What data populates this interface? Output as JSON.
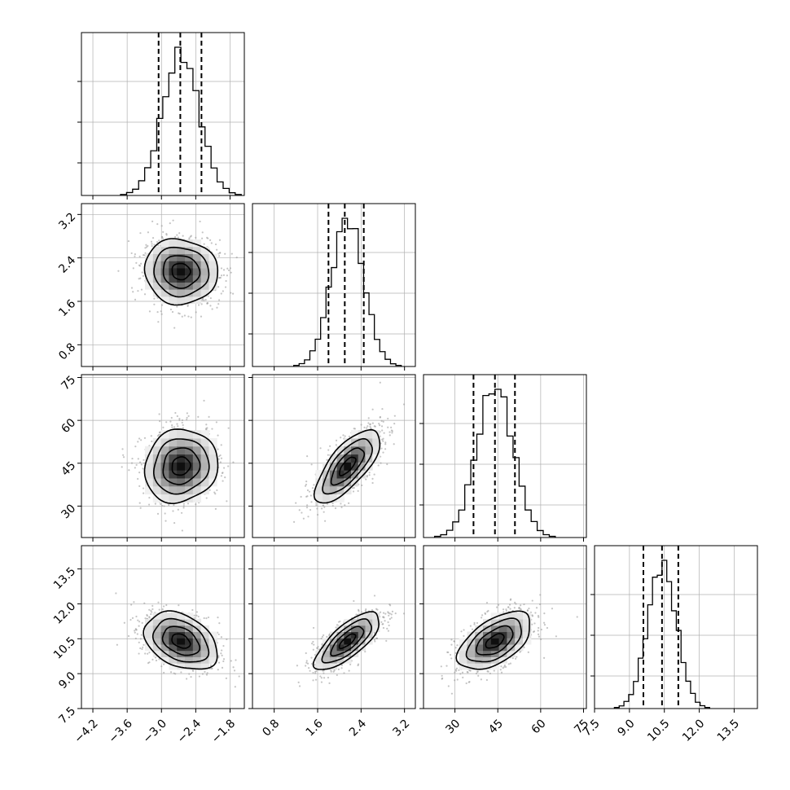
{
  "chart_data": {
    "type": "corner",
    "grid": true,
    "colors": {
      "hist": "#000000",
      "density": "#000000",
      "scatter": "#9e9e9e",
      "grid": "#b0b0b0"
    },
    "params": [
      {
        "range": [
          -4.4,
          -1.55
        ],
        "ticks": [
          -4.2,
          -3.6,
          -3.0,
          -2.4,
          -1.8
        ],
        "tick_labels": [
          "−4.2",
          "−3.6",
          "−3.0",
          "−2.4",
          "−1.8"
        ],
        "mean": -2.66,
        "sd": 0.32,
        "quantiles": [
          -3.05,
          -2.67,
          -2.3
        ]
      },
      {
        "range": [
          0.4,
          3.4
        ],
        "ticks": [
          0.8,
          1.6,
          2.4,
          3.2
        ],
        "tick_labels": [
          "0.8",
          "1.6",
          "2.4",
          "3.2"
        ],
        "mean": 2.15,
        "sd": 0.3,
        "quantiles": [
          1.8,
          2.1,
          2.45
        ]
      },
      {
        "range": [
          19,
          76
        ],
        "ticks": [
          30,
          45,
          60,
          75
        ],
        "tick_labels": [
          "30",
          "45",
          "60",
          "75"
        ],
        "mean": 44,
        "sd": 6.4,
        "quantiles": [
          36.5,
          44,
          51
        ]
      },
      {
        "range": [
          7.5,
          14.5
        ],
        "ticks": [
          7.5,
          9.0,
          10.5,
          12.0,
          13.5
        ],
        "tick_labels": [
          "7.5",
          "9.0",
          "10.5",
          "12.0",
          "13.5"
        ],
        "mean": 10.4,
        "sd": 0.62,
        "quantiles": [
          9.6,
          10.4,
          11.1
        ]
      }
    ],
    "correlations": [
      {
        "i": 1,
        "j": 0,
        "r": -0.05
      },
      {
        "i": 2,
        "j": 0,
        "r": 0.1
      },
      {
        "i": 2,
        "j": 1,
        "r": 0.72
      },
      {
        "i": 3,
        "j": 0,
        "r": -0.35
      },
      {
        "i": 3,
        "j": 1,
        "r": 0.75
      },
      {
        "i": 3,
        "j": 2,
        "r": 0.55
      }
    ],
    "contour_sigma_levels": [
      0.5,
      1.0,
      1.5,
      2.0
    ],
    "hist_bins": 20
  }
}
